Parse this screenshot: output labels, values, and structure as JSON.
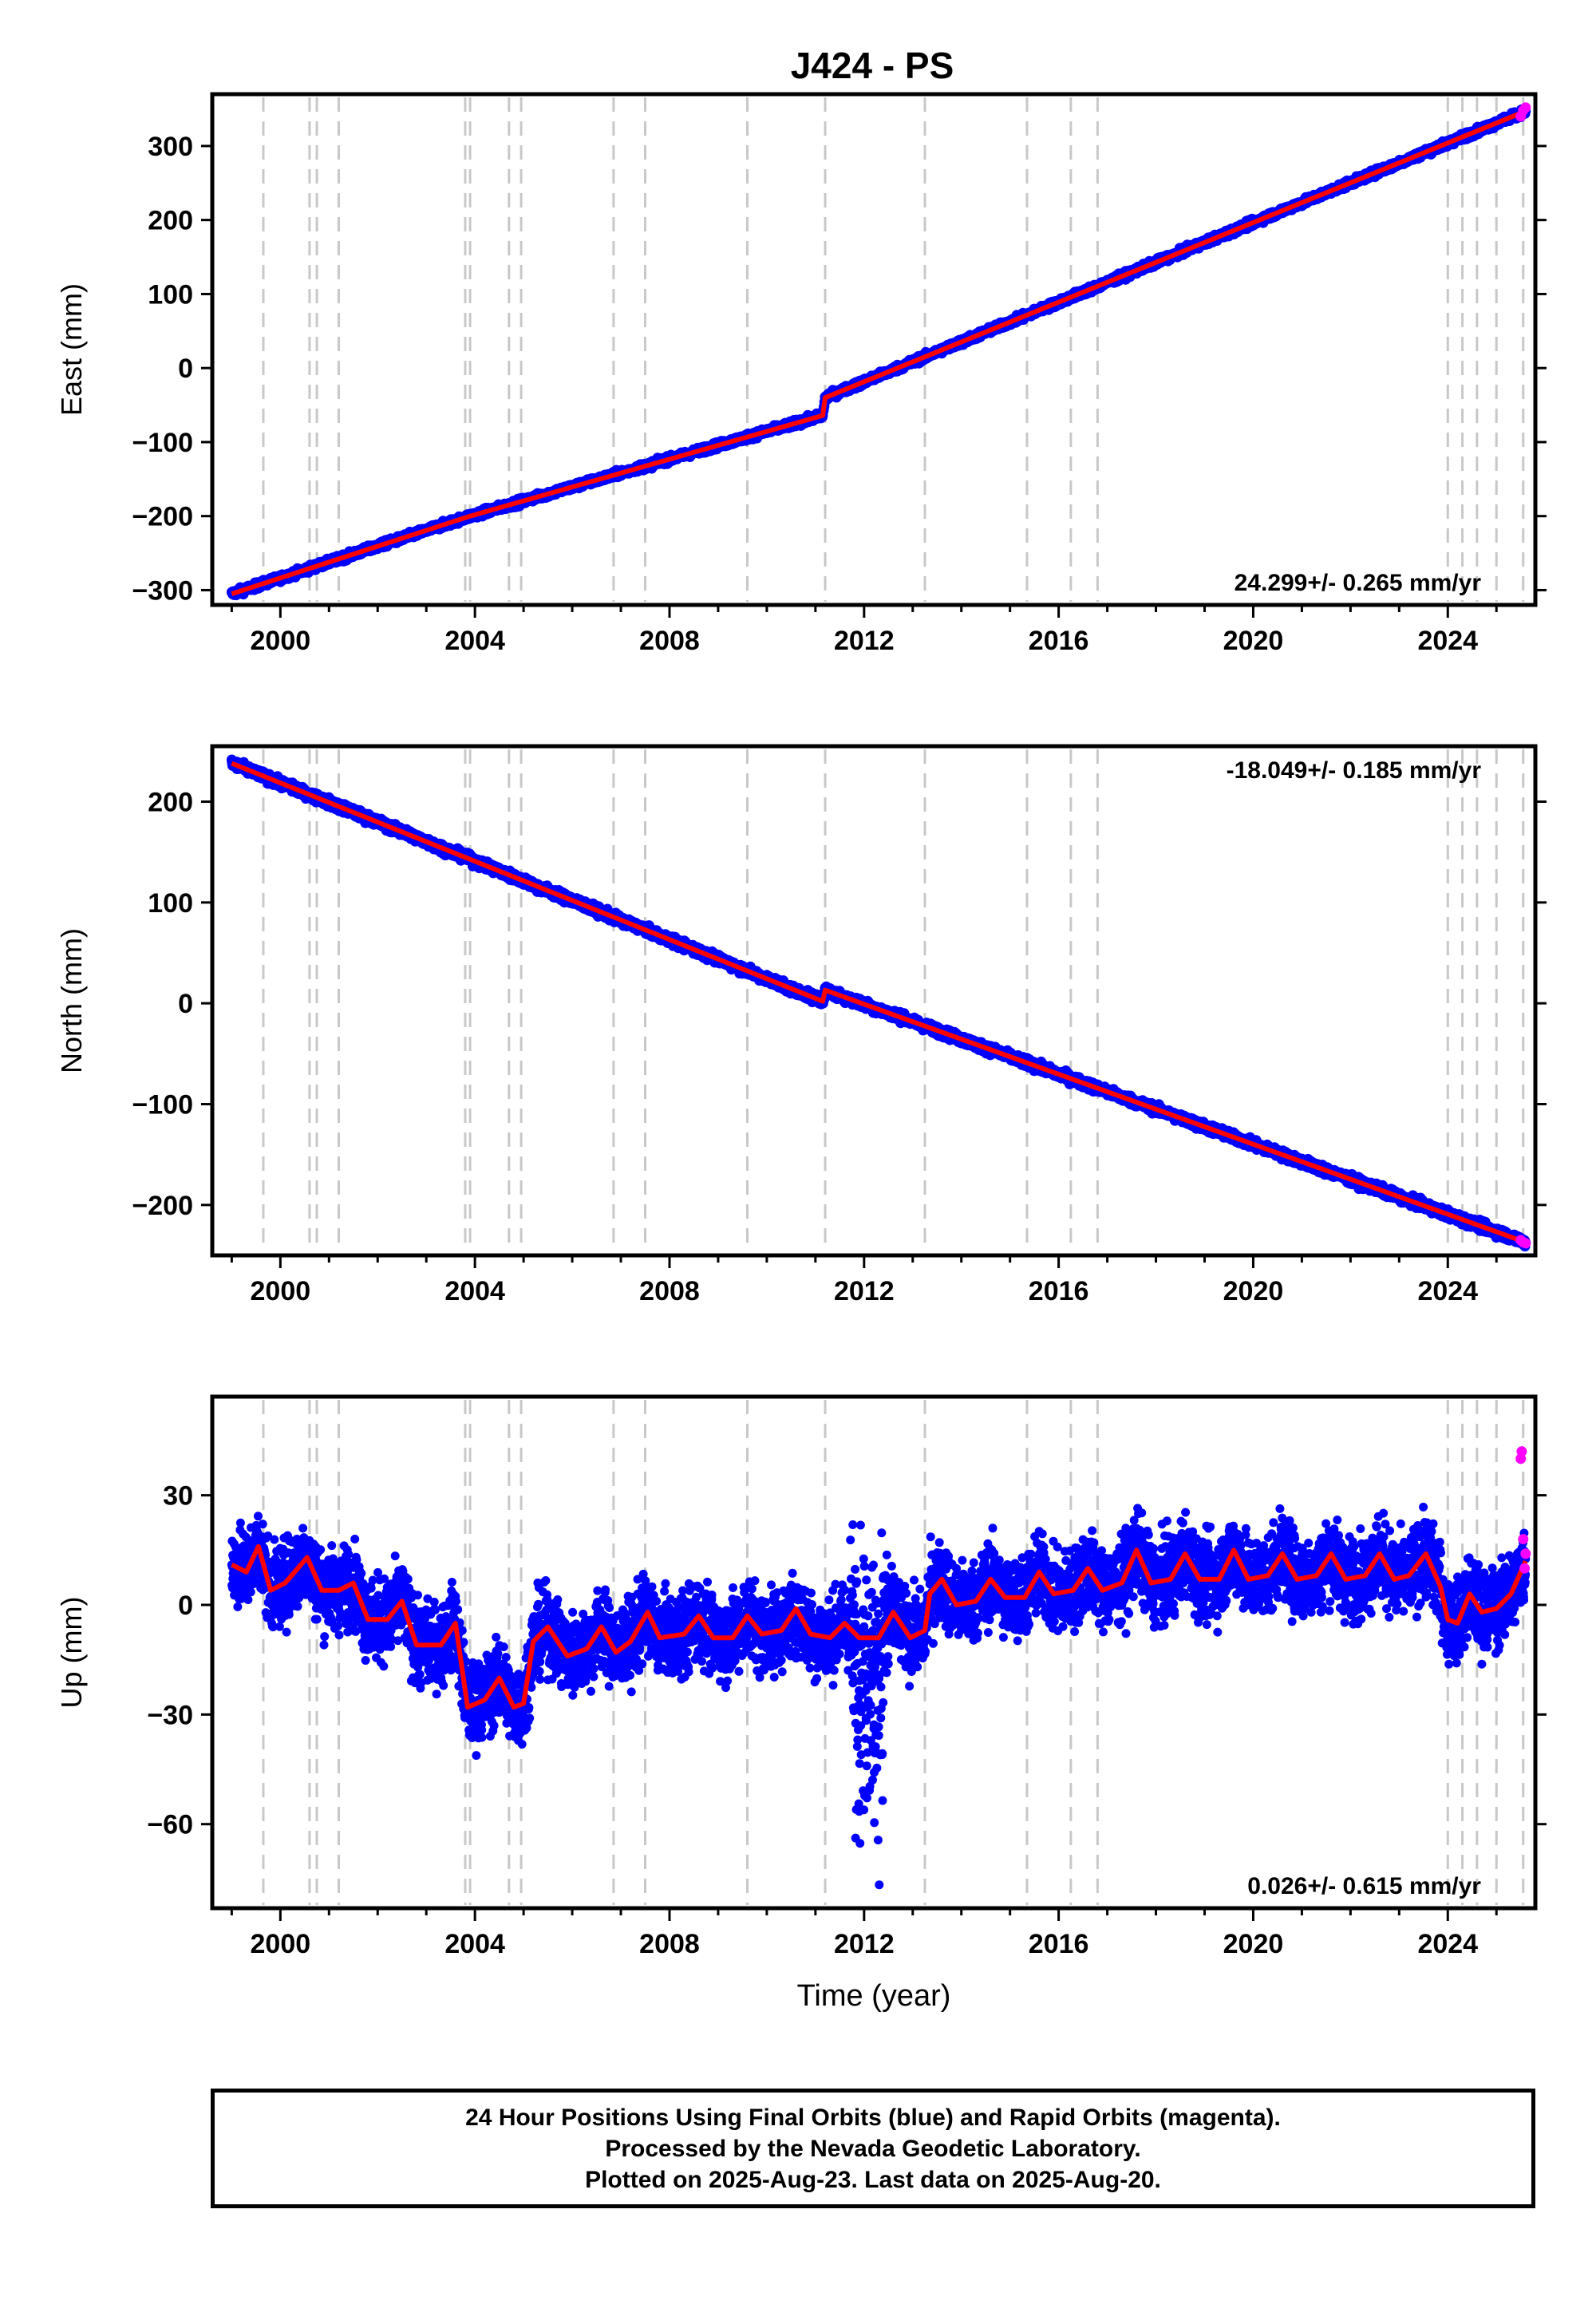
{
  "title": "J424 - PS",
  "xlabel": "Time (year)",
  "colors": {
    "final_orbits": "#0000ff",
    "rapid_orbits": "#ff00ff",
    "model": "#ff0000",
    "event_lines": "#c8c8c8"
  },
  "footer": {
    "line1": "24 Hour Positions Using Final Orbits (blue) and Rapid Orbits (magenta).",
    "line2": "Processed by the Nevada Geodetic Laboratory.",
    "line3": "Plotted on 2025-Aug-23. Last data on 2025-Aug-20."
  },
  "chart_data": [
    {
      "type": "scatter",
      "panel": "east",
      "ylabel": "East (mm)",
      "rate": "24.299+/- 0.265 mm/yr",
      "xlim": [
        1998.6,
        2025.8
      ],
      "ylim": [
        -320,
        370
      ],
      "yticks": [
        -300,
        -200,
        -100,
        0,
        100,
        200,
        300
      ],
      "ytick_labels": [
        "−300",
        "−200",
        "−100",
        "0",
        "100",
        "200",
        "300"
      ],
      "xticks": [
        2000,
        2004,
        2008,
        2012,
        2016,
        2020,
        2024
      ],
      "xtick_labels": [
        "2000",
        "2004",
        "2008",
        "2012",
        "2016",
        "2020",
        "2024"
      ],
      "event_lines": [
        1999.65,
        2000.6,
        2000.75,
        2001.2,
        2003.8,
        2003.9,
        2004.7,
        2004.95,
        2006.85,
        2007.5,
        2009.6,
        2011.2,
        2013.25,
        2015.35,
        2016.25,
        2016.8,
        2024.0,
        2024.3,
        2024.6,
        2025.0,
        2025.55
      ],
      "model": [
        [
          1999.0,
          -305
        ],
        [
          2003.9,
          -200
        ],
        [
          2011.15,
          -64
        ],
        [
          2011.2,
          -40
        ],
        [
          2025.6,
          347
        ]
      ],
      "rapid_points": [
        [
          2025.5,
          340
        ],
        [
          2025.55,
          348
        ],
        [
          2025.6,
          352
        ]
      ]
    },
    {
      "type": "scatter",
      "panel": "north",
      "ylabel": "North (mm)",
      "rate": "-18.049+/- 0.185 mm/yr",
      "xlim": [
        1998.6,
        2025.8
      ],
      "ylim": [
        -250,
        255
      ],
      "yticks": [
        -200,
        -100,
        0,
        100,
        200
      ],
      "ytick_labels": [
        "−200",
        "−100",
        "0",
        "100",
        "200"
      ],
      "xticks": [
        2000,
        2004,
        2008,
        2012,
        2016,
        2020,
        2024
      ],
      "xtick_labels": [
        "2000",
        "2004",
        "2008",
        "2012",
        "2016",
        "2020",
        "2024"
      ],
      "event_lines": [
        1999.65,
        2000.6,
        2000.75,
        2001.2,
        2003.8,
        2003.9,
        2004.7,
        2004.95,
        2006.85,
        2007.5,
        2009.6,
        2011.2,
        2013.25,
        2015.35,
        2016.25,
        2016.8,
        2024.0,
        2024.3,
        2024.6,
        2025.0,
        2025.55
      ],
      "model": [
        [
          1999.0,
          238
        ],
        [
          2011.15,
          2
        ],
        [
          2011.2,
          13
        ],
        [
          2025.6,
          -237
        ]
      ],
      "rapid_points": [
        [
          2025.5,
          -235
        ],
        [
          2025.55,
          -237
        ],
        [
          2025.6,
          -238
        ]
      ]
    },
    {
      "type": "scatter",
      "panel": "up",
      "ylabel": "Up (mm)",
      "rate": "0.026+/- 0.615 mm/yr",
      "xlim": [
        1998.6,
        2025.8
      ],
      "ylim": [
        -83,
        57
      ],
      "yticks": [
        -60,
        -30,
        0,
        30
      ],
      "ytick_labels": [
        "−60",
        "−30",
        "0",
        "30"
      ],
      "xticks": [
        2000,
        2004,
        2008,
        2012,
        2016,
        2020,
        2024
      ],
      "xtick_labels": [
        "2000",
        "2004",
        "2008",
        "2012",
        "2016",
        "2020",
        "2024"
      ],
      "event_lines": [
        1999.65,
        2000.6,
        2000.75,
        2001.2,
        2003.8,
        2003.9,
        2004.7,
        2004.95,
        2006.85,
        2007.5,
        2009.6,
        2011.2,
        2013.25,
        2015.35,
        2016.25,
        2016.8,
        2024.0,
        2024.3,
        2024.6,
        2025.0,
        2025.55
      ],
      "model": [
        [
          1999.0,
          11
        ],
        [
          1999.3,
          9
        ],
        [
          1999.55,
          16
        ],
        [
          1999.8,
          4
        ],
        [
          2000.1,
          6
        ],
        [
          2000.55,
          13
        ],
        [
          2000.85,
          4
        ],
        [
          2001.2,
          4
        ],
        [
          2001.5,
          6
        ],
        [
          2001.8,
          -4
        ],
        [
          2002.2,
          -4
        ],
        [
          2002.5,
          1
        ],
        [
          2002.8,
          -11
        ],
        [
          2003.3,
          -11
        ],
        [
          2003.6,
          -5
        ],
        [
          2003.85,
          -28
        ],
        [
          2004.2,
          -26
        ],
        [
          2004.5,
          -20
        ],
        [
          2004.8,
          -28
        ],
        [
          2005.0,
          -27
        ],
        [
          2005.2,
          -10
        ],
        [
          2005.5,
          -6
        ],
        [
          2005.9,
          -14
        ],
        [
          2006.3,
          -12
        ],
        [
          2006.6,
          -6
        ],
        [
          2006.9,
          -13
        ],
        [
          2007.2,
          -10
        ],
        [
          2007.55,
          -2
        ],
        [
          2007.8,
          -9
        ],
        [
          2008.3,
          -8
        ],
        [
          2008.6,
          -3
        ],
        [
          2008.9,
          -9
        ],
        [
          2009.3,
          -9
        ],
        [
          2009.6,
          -3
        ],
        [
          2009.9,
          -8
        ],
        [
          2010.3,
          -7
        ],
        [
          2010.6,
          -1
        ],
        [
          2010.9,
          -8
        ],
        [
          2011.3,
          -9
        ],
        [
          2011.6,
          -5
        ],
        [
          2011.9,
          -9
        ],
        [
          2012.3,
          -9
        ],
        [
          2012.6,
          -2
        ],
        [
          2012.95,
          -9
        ],
        [
          2013.25,
          -7
        ],
        [
          2013.35,
          3
        ],
        [
          2013.6,
          7
        ],
        [
          2013.9,
          0
        ],
        [
          2014.3,
          1
        ],
        [
          2014.6,
          7
        ],
        [
          2014.9,
          2
        ],
        [
          2015.3,
          2
        ],
        [
          2015.6,
          9
        ],
        [
          2015.9,
          3
        ],
        [
          2016.3,
          4
        ],
        [
          2016.6,
          10
        ],
        [
          2016.9,
          4
        ],
        [
          2017.3,
          6
        ],
        [
          2017.6,
          15
        ],
        [
          2017.9,
          6
        ],
        [
          2018.3,
          7
        ],
        [
          2018.6,
          14
        ],
        [
          2018.9,
          7
        ],
        [
          2019.3,
          7
        ],
        [
          2019.6,
          15
        ],
        [
          2019.9,
          7
        ],
        [
          2020.3,
          8
        ],
        [
          2020.6,
          14
        ],
        [
          2020.9,
          7
        ],
        [
          2021.3,
          8
        ],
        [
          2021.6,
          14
        ],
        [
          2021.9,
          7
        ],
        [
          2022.3,
          8
        ],
        [
          2022.6,
          14
        ],
        [
          2022.9,
          7
        ],
        [
          2023.2,
          8
        ],
        [
          2023.55,
          14
        ],
        [
          2023.85,
          5
        ],
        [
          2024.0,
          -4
        ],
        [
          2024.2,
          -5
        ],
        [
          2024.45,
          3
        ],
        [
          2024.7,
          -2
        ],
        [
          2025.0,
          -1
        ],
        [
          2025.3,
          3
        ],
        [
          2025.6,
          12
        ]
      ],
      "rapid_points": [
        [
          2025.5,
          40
        ],
        [
          2025.52,
          42
        ],
        [
          2025.55,
          18
        ],
        [
          2025.58,
          10
        ],
        [
          2025.6,
          14
        ]
      ]
    }
  ]
}
